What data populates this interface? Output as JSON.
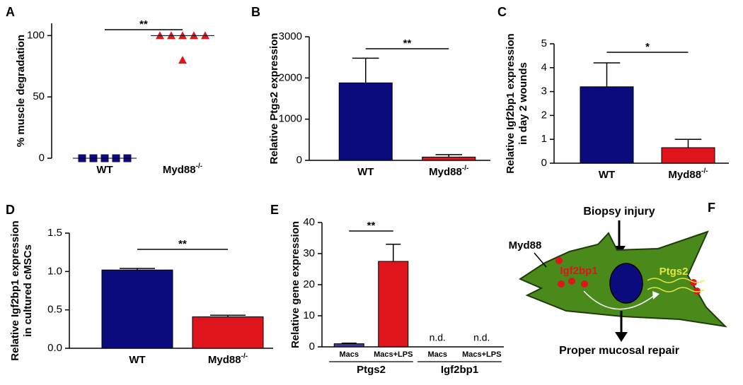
{
  "chart_data": [
    {
      "type": "scatter",
      "panel": "A",
      "ylabel": [
        "% muscle degradation"
      ],
      "categories": [
        "WT",
        "Myd88-/-"
      ],
      "series": [
        {
          "color": "#0b0b7e",
          "marker": "square",
          "values": [
            0,
            0,
            0,
            0,
            0
          ]
        },
        {
          "color": "#e0141b",
          "marker": "triangle",
          "values": [
            100,
            100,
            100,
            100,
            100,
            80
          ]
        }
      ],
      "medians": [
        0,
        100
      ],
      "ylim": [
        0,
        110
      ],
      "yticks": [
        0,
        50,
        100
      ],
      "significance": "**"
    },
    {
      "type": "bar",
      "panel": "B",
      "ylabel": [
        "Relative Ptgs2 expression"
      ],
      "categories": [
        "WT",
        "Myd88-/-"
      ],
      "values": [
        1880,
        80
      ],
      "errors": [
        600,
        60
      ],
      "colors": [
        "#0b0b7e",
        "#e0141b"
      ],
      "ylim": [
        0,
        3000
      ],
      "yticks": [
        0,
        1000,
        2000,
        3000
      ],
      "significance": "**"
    },
    {
      "type": "bar",
      "panel": "C",
      "ylabel": [
        "Relative Igf2bp1 expression",
        "in day 2 wounds"
      ],
      "categories": [
        "WT",
        "Myd88-/-"
      ],
      "values": [
        3.2,
        0.65
      ],
      "errors": [
        1.0,
        0.35
      ],
      "colors": [
        "#0b0b7e",
        "#e0141b"
      ],
      "ylim": [
        0,
        5
      ],
      "yticks": [
        0,
        1,
        2,
        3,
        4,
        5
      ],
      "significance": "*"
    },
    {
      "type": "bar",
      "panel": "D",
      "ylabel": [
        "Relative Igf2bp1 expression",
        "in cultured cMSCs"
      ],
      "categories": [
        "WT",
        "Myd88-/-"
      ],
      "values": [
        1.02,
        0.41
      ],
      "errors": [
        0.02,
        0.02
      ],
      "colors": [
        "#0b0b7e",
        "#e0141b"
      ],
      "ylim": [
        0,
        1.5
      ],
      "yticks": [
        {
          "value": 0,
          "label": "0.0"
        },
        0.5,
        {
          "value": 1,
          "label": "1.0"
        },
        1.5
      ],
      "significance": "**"
    },
    {
      "type": "bar",
      "panel": "E",
      "ylabel": [
        "Relative gene expression"
      ],
      "categories": [
        "Macs",
        "Macs+LPS",
        "Macs",
        "Macs+LPS"
      ],
      "groups": [
        "Ptgs2",
        "Igf2bp1"
      ],
      "values": [
        1,
        27.5,
        null,
        null
      ],
      "errors": [
        0.2,
        5.5,
        null,
        null
      ],
      "value_labels": [
        null,
        null,
        "n.d.",
        "n.d."
      ],
      "colors": [
        "#3a3a9a",
        "#e0141b",
        "#3a3a9a",
        "#e0141b"
      ],
      "ylim": [
        0,
        40
      ],
      "yticks": [
        0,
        10,
        20,
        30,
        40
      ],
      "significance": "**"
    }
  ],
  "diagram": {
    "panel": "F",
    "top": "Biopsy injury",
    "receptor": "Myd88",
    "gene1": "Igf2bp1",
    "gene2": "Ptgs2",
    "outcome": "Proper mucosal repair"
  }
}
